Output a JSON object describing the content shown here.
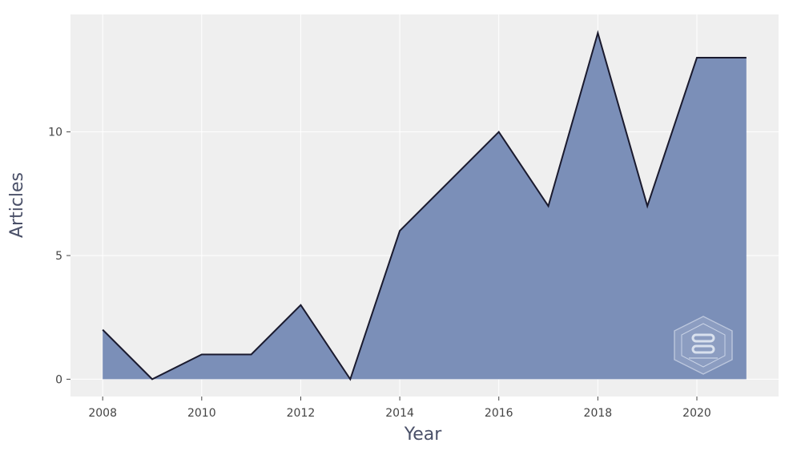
{
  "chart_data": {
    "type": "area",
    "xlabel": "Year",
    "ylabel": "Articles",
    "x": [
      2008,
      2009,
      2010,
      2011,
      2012,
      2013,
      2014,
      2015,
      2016,
      2017,
      2018,
      2019,
      2020,
      2021
    ],
    "series": [
      {
        "values": [
          2,
          0,
          1,
          1,
          3,
          0,
          6,
          8,
          10,
          7,
          14,
          7,
          13,
          13
        ]
      }
    ],
    "x_ticks": [
      "2008",
      "2010",
      "2012",
      "2014",
      "2016",
      "2018",
      "2020"
    ],
    "y_ticks": [
      "0",
      "5",
      "10"
    ],
    "xlim": [
      2007.35,
      2021.65
    ],
    "ylim": [
      -0.7,
      14.75
    ],
    "grid": true,
    "colors": {
      "fill": "#7b8fb8",
      "line": "#1a1a2e",
      "plot_background": "#efefef",
      "grid": "#ffffff"
    }
  }
}
